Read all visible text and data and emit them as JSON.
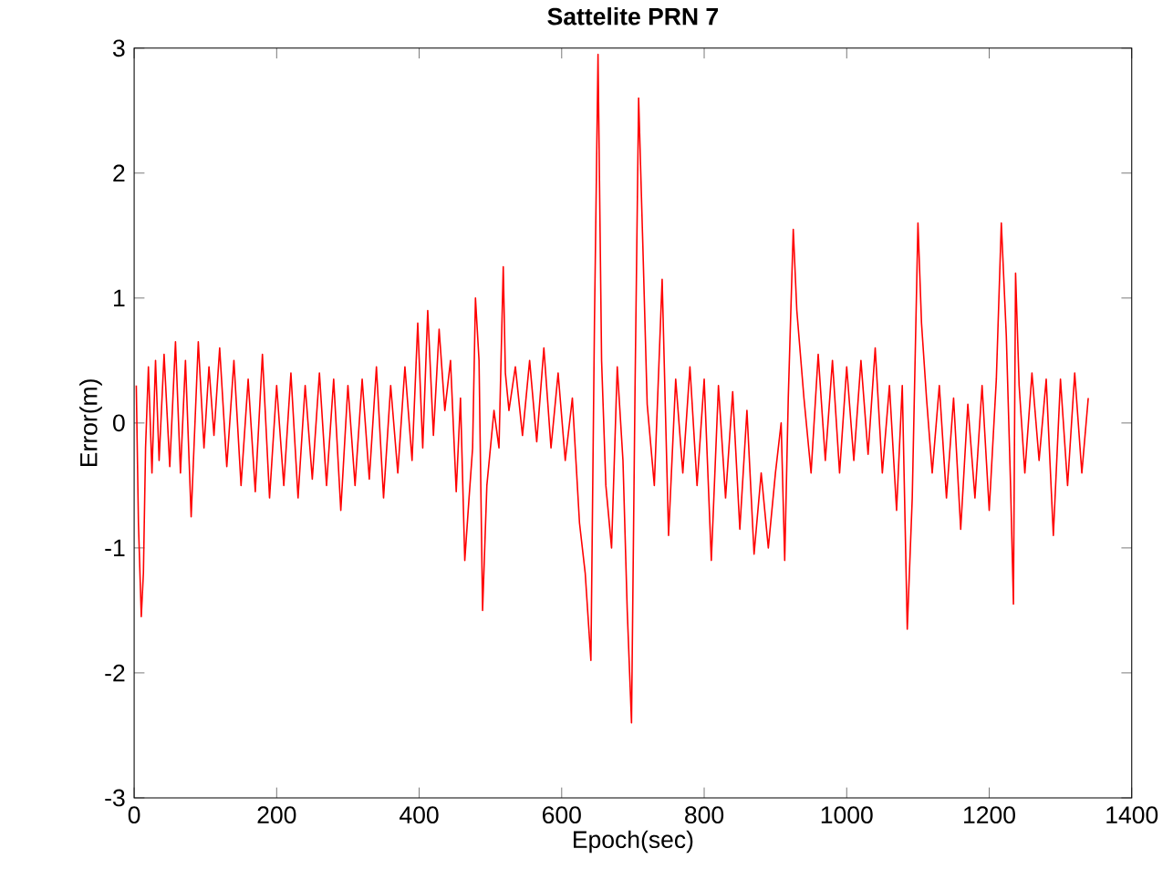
{
  "chart_data": {
    "type": "line",
    "title": "Sattelite PRN 7",
    "xlabel": "Epoch(sec)",
    "ylabel": "Error(m)",
    "xlim": [
      0,
      1400
    ],
    "ylim": [
      -3,
      3
    ],
    "xticks": [
      0,
      200,
      400,
      600,
      800,
      1000,
      1200,
      1400
    ],
    "yticks": [
      -3,
      -2,
      -1,
      0,
      1,
      2,
      3
    ],
    "grid": false,
    "series": [
      {
        "color": "#ff0000",
        "x": [
          3,
          6,
          10,
          13,
          16,
          20,
          25,
          30,
          35,
          42,
          50,
          58,
          65,
          72,
          80,
          90,
          98,
          105,
          112,
          120,
          130,
          140,
          150,
          160,
          170,
          180,
          190,
          200,
          210,
          220,
          230,
          240,
          250,
          260,
          270,
          280,
          290,
          300,
          310,
          320,
          330,
          340,
          350,
          360,
          370,
          380,
          390,
          398,
          405,
          412,
          420,
          428,
          436,
          444,
          452,
          458,
          464,
          470,
          475,
          479,
          484,
          489,
          495,
          505,
          512,
          518,
          521,
          526,
          535,
          545,
          555,
          565,
          575,
          585,
          595,
          605,
          615,
          625,
          633,
          641,
          646,
          651,
          656,
          662,
          670,
          678,
          686,
          692,
          698,
          703,
          708,
          714,
          720,
          730,
          741,
          750,
          760,
          770,
          780,
          790,
          800,
          810,
          820,
          830,
          840,
          850,
          860,
          870,
          880,
          890,
          900,
          908,
          913,
          918,
          925,
          930,
          940,
          950,
          960,
          970,
          980,
          990,
          1000,
          1010,
          1020,
          1030,
          1040,
          1050,
          1060,
          1070,
          1078,
          1085,
          1092,
          1100,
          1105,
          1112,
          1120,
          1130,
          1140,
          1150,
          1160,
          1170,
          1180,
          1190,
          1200,
          1210,
          1217,
          1224,
          1230,
          1234,
          1237,
          1242,
          1250,
          1260,
          1270,
          1280,
          1290,
          1300,
          1310,
          1320,
          1330,
          1339
        ],
        "values": [
          0.3,
          -0.8,
          -1.55,
          -1.2,
          -0.2,
          0.45,
          -0.4,
          0.5,
          -0.3,
          0.55,
          -0.35,
          0.65,
          -0.4,
          0.5,
          -0.75,
          0.65,
          -0.2,
          0.45,
          -0.1,
          0.6,
          -0.35,
          0.5,
          -0.5,
          0.35,
          -0.55,
          0.55,
          -0.6,
          0.3,
          -0.5,
          0.4,
          -0.6,
          0.3,
          -0.45,
          0.4,
          -0.5,
          0.35,
          -0.7,
          0.3,
          -0.5,
          0.35,
          -0.45,
          0.45,
          -0.6,
          0.3,
          -0.4,
          0.45,
          -0.3,
          0.8,
          -0.2,
          0.9,
          -0.1,
          0.75,
          0.1,
          0.5,
          -0.55,
          0.2,
          -1.1,
          -0.6,
          -0.2,
          1.0,
          0.5,
          -1.5,
          -0.5,
          0.1,
          -0.2,
          1.25,
          0.4,
          0.1,
          0.45,
          -0.1,
          0.5,
          -0.15,
          0.6,
          -0.2,
          0.4,
          -0.3,
          0.2,
          -0.8,
          -1.2,
          -1.9,
          0.8,
          2.95,
          0.5,
          -0.5,
          -1.0,
          0.45,
          -0.3,
          -1.5,
          -2.4,
          0.3,
          2.6,
          1.4,
          0.15,
          -0.5,
          1.15,
          -0.9,
          0.35,
          -0.4,
          0.45,
          -0.5,
          0.35,
          -1.1,
          0.3,
          -0.6,
          0.25,
          -0.85,
          0.1,
          -1.05,
          -0.4,
          -1.0,
          -0.4,
          0.0,
          -1.1,
          0.2,
          1.55,
          0.9,
          0.2,
          -0.4,
          0.55,
          -0.3,
          0.5,
          -0.4,
          0.45,
          -0.3,
          0.5,
          -0.25,
          0.6,
          -0.4,
          0.3,
          -0.7,
          0.3,
          -1.65,
          -0.6,
          1.6,
          0.8,
          0.2,
          -0.4,
          0.3,
          -0.6,
          0.2,
          -0.85,
          0.15,
          -0.6,
          0.3,
          -0.7,
          0.35,
          1.6,
          0.7,
          -0.5,
          -1.45,
          1.2,
          0.3,
          -0.4,
          0.4,
          -0.3,
          0.35,
          -0.9,
          0.35,
          -0.5,
          0.4,
          -0.4,
          0.2
        ]
      }
    ]
  }
}
